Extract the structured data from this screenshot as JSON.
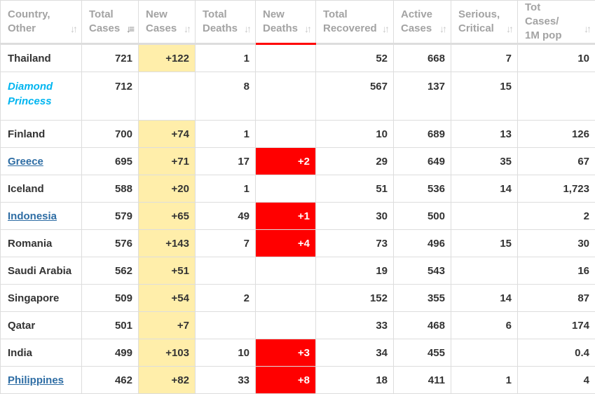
{
  "headers": [
    {
      "line1": "Country,",
      "line2": "Other"
    },
    {
      "line1": "Total",
      "line2": "Cases"
    },
    {
      "line1": "New",
      "line2": "Cases"
    },
    {
      "line1": "Total",
      "line2": "Deaths"
    },
    {
      "line1": "New",
      "line2": "Deaths"
    },
    {
      "line1": "Total",
      "line2": "Recovered"
    },
    {
      "line1": "Active",
      "line2": "Cases"
    },
    {
      "line1": "Serious,",
      "line2": "Critical"
    },
    {
      "line1": "Tot Cases/",
      "line2": "1M pop"
    }
  ],
  "sort_icon": "sort-arrows-icon",
  "colors": {
    "new_cases_bg": "#ffeeaa",
    "new_deaths_bg": "#ff0000",
    "link": "#2e6da4",
    "special": "#00b5f0"
  },
  "rows": [
    {
      "country": "Thailand",
      "style": "plain",
      "total_cases": "721",
      "new_cases": "+122",
      "total_deaths": "1",
      "new_deaths": "",
      "total_recovered": "52",
      "active_cases": "668",
      "serious_critical": "7",
      "per_million": "10"
    },
    {
      "country": "Diamond Princess",
      "style": "special",
      "total_cases": "712",
      "new_cases": "",
      "total_deaths": "8",
      "new_deaths": "",
      "total_recovered": "567",
      "active_cases": "137",
      "serious_critical": "15",
      "per_million": ""
    },
    {
      "country": "Finland",
      "style": "plain",
      "total_cases": "700",
      "new_cases": "+74",
      "total_deaths": "1",
      "new_deaths": "",
      "total_recovered": "10",
      "active_cases": "689",
      "serious_critical": "13",
      "per_million": "126"
    },
    {
      "country": "Greece",
      "style": "link",
      "total_cases": "695",
      "new_cases": "+71",
      "total_deaths": "17",
      "new_deaths": "+2",
      "total_recovered": "29",
      "active_cases": "649",
      "serious_critical": "35",
      "per_million": "67"
    },
    {
      "country": "Iceland",
      "style": "plain",
      "total_cases": "588",
      "new_cases": "+20",
      "total_deaths": "1",
      "new_deaths": "",
      "total_recovered": "51",
      "active_cases": "536",
      "serious_critical": "14",
      "per_million": "1,723"
    },
    {
      "country": "Indonesia",
      "style": "link",
      "total_cases": "579",
      "new_cases": "+65",
      "total_deaths": "49",
      "new_deaths": "+1",
      "total_recovered": "30",
      "active_cases": "500",
      "serious_critical": "",
      "per_million": "2"
    },
    {
      "country": "Romania",
      "style": "plain",
      "total_cases": "576",
      "new_cases": "+143",
      "total_deaths": "7",
      "new_deaths": "+4",
      "total_recovered": "73",
      "active_cases": "496",
      "serious_critical": "15",
      "per_million": "30"
    },
    {
      "country": "Saudi Arabia",
      "style": "plain",
      "total_cases": "562",
      "new_cases": "+51",
      "total_deaths": "",
      "new_deaths": "",
      "total_recovered": "19",
      "active_cases": "543",
      "serious_critical": "",
      "per_million": "16"
    },
    {
      "country": "Singapore",
      "style": "plain",
      "total_cases": "509",
      "new_cases": "+54",
      "total_deaths": "2",
      "new_deaths": "",
      "total_recovered": "152",
      "active_cases": "355",
      "serious_critical": "14",
      "per_million": "87"
    },
    {
      "country": "Qatar",
      "style": "plain",
      "total_cases": "501",
      "new_cases": "+7",
      "total_deaths": "",
      "new_deaths": "",
      "total_recovered": "33",
      "active_cases": "468",
      "serious_critical": "6",
      "per_million": "174"
    },
    {
      "country": "India",
      "style": "plain",
      "total_cases": "499",
      "new_cases": "+103",
      "total_deaths": "10",
      "new_deaths": "+3",
      "total_recovered": "34",
      "active_cases": "455",
      "serious_critical": "",
      "per_million": "0.4"
    },
    {
      "country": "Philippines",
      "style": "link",
      "total_cases": "462",
      "new_cases": "+82",
      "total_deaths": "33",
      "new_deaths": "+8",
      "total_recovered": "18",
      "active_cases": "411",
      "serious_critical": "1",
      "per_million": "4"
    }
  ]
}
